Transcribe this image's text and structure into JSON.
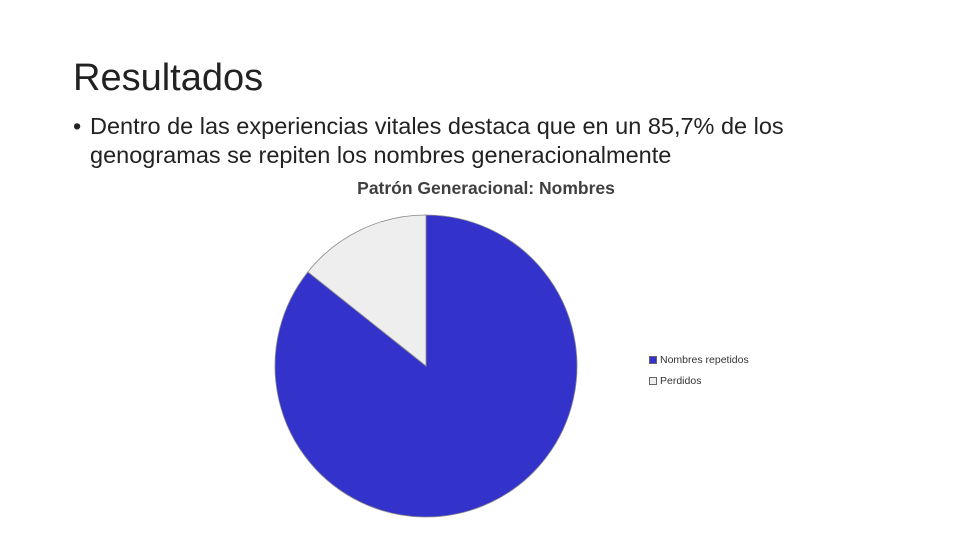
{
  "slide": {
    "title": "Resultados",
    "bullet": "•",
    "bullet_text": "Dentro de las experiencias vitales destaca que en un 85,7% de los genogramas se repiten los nombres generacionalmente"
  },
  "chart_data": {
    "type": "pie",
    "title": "Patrón Generacional: Nombres",
    "categories": [
      "Nombres repetidos",
      "Perdidos"
    ],
    "values": [
      85.7,
      14.3
    ],
    "colors": [
      "#3333CC",
      "#EEEEEE"
    ],
    "start_angle_deg": 0,
    "direction": "clockwise",
    "legend_position": "right"
  }
}
